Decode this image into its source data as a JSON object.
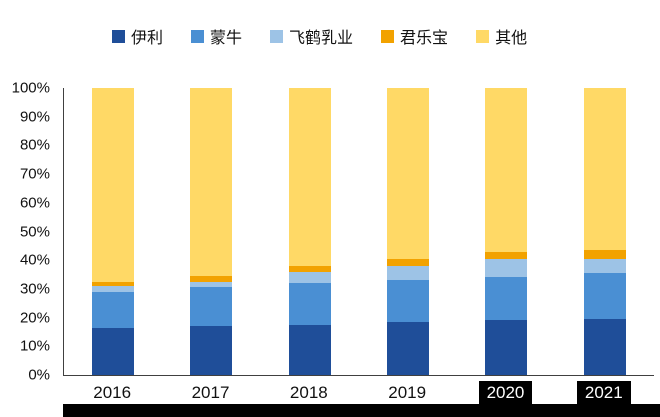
{
  "chart_data": {
    "type": "bar",
    "subtype": "stacked-100",
    "title": "",
    "xlabel": "",
    "ylabel": "",
    "categories": [
      "2016",
      "2017",
      "2018",
      "2019",
      "2020",
      "2021"
    ],
    "series": [
      {
        "name": "伊利",
        "color": "#1F4E99",
        "values": [
          16.5,
          17.0,
          17.5,
          18.5,
          19.0,
          19.5
        ]
      },
      {
        "name": "蒙牛",
        "color": "#4A8FD3",
        "values": [
          12.5,
          13.5,
          14.5,
          14.5,
          15.0,
          16.0
        ]
      },
      {
        "name": "飞鹤乳业",
        "color": "#9DC3E6",
        "values": [
          2.0,
          2.0,
          4.0,
          5.0,
          6.5,
          5.0
        ]
      },
      {
        "name": "君乐宝",
        "color": "#F2A200",
        "values": [
          1.5,
          2.0,
          2.0,
          2.5,
          2.5,
          3.0
        ]
      },
      {
        "name": "其他",
        "color": "#FFD966",
        "values": [
          67.5,
          65.5,
          62.0,
          59.5,
          57.0,
          56.5
        ]
      }
    ],
    "ylim": [
      0,
      100
    ],
    "ytick_step": 10,
    "ytick_labels": [
      "0%",
      "10%",
      "20%",
      "30%",
      "40%",
      "50%",
      "60%",
      "70%",
      "80%",
      "90%",
      "100%"
    ],
    "legend_position": "top",
    "grid": false
  },
  "highlighted_categories": [
    "2020",
    "2021"
  ]
}
